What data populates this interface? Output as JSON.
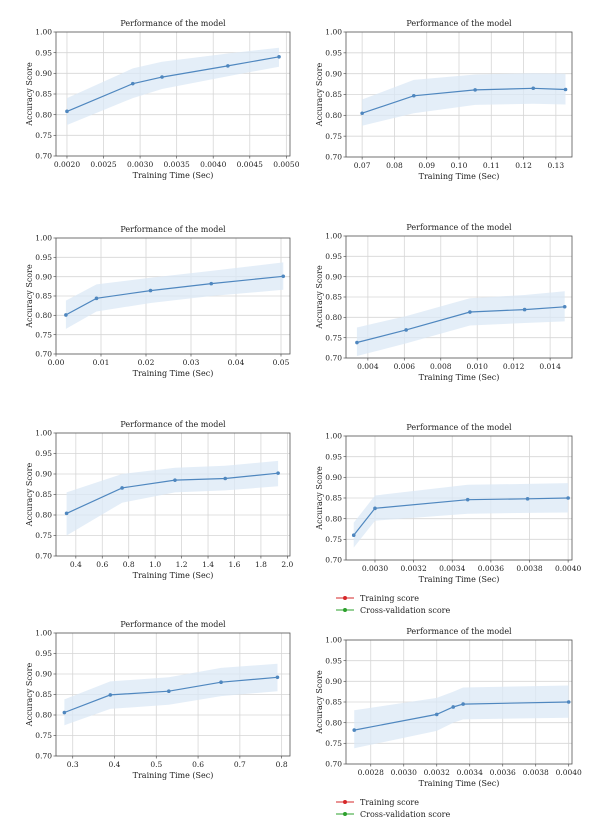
{
  "charts": [
    {
      "type": "line",
      "title": "Performance of the model",
      "xlabel": "Training Time (Sec)",
      "ylabel": "Accuracy Score",
      "xlim": [
        0.00185,
        0.00505
      ],
      "ylim": [
        0.7,
        1.0
      ],
      "xticks": [
        0.002,
        0.0025,
        0.003,
        0.0035,
        0.004,
        0.0045,
        0.005
      ],
      "xticklabels": [
        "0.0020",
        "0.0025",
        "0.0030",
        "0.0035",
        "0.0040",
        "0.0045",
        "0.0050"
      ],
      "yticks": [
        0.7,
        0.75,
        0.8,
        0.85,
        0.9,
        0.95,
        1.0
      ],
      "yticklabels": [
        "0.70",
        "0.75",
        "0.80",
        "0.85",
        "0.90",
        "0.95",
        "1.00"
      ],
      "grid": true,
      "x": [
        0.002,
        0.0029,
        0.0033,
        0.0042,
        0.0049
      ],
      "y": [
        0.808,
        0.875,
        0.891,
        0.918,
        0.94
      ],
      "y_lower": [
        0.775,
        0.84,
        0.862,
        0.893,
        0.916
      ],
      "y_upper": [
        0.84,
        0.912,
        0.928,
        0.948,
        0.962
      ]
    },
    {
      "type": "line",
      "title": "Performance of the model",
      "xlabel": "Training Time (Sec)",
      "ylabel": "Accuracy Score",
      "xlim": [
        0.065,
        0.135
      ],
      "ylim": [
        0.7,
        1.0
      ],
      "xticks": [
        0.07,
        0.08,
        0.09,
        0.1,
        0.11,
        0.12,
        0.13
      ],
      "xticklabels": [
        "0.07",
        "0.08",
        "0.09",
        "0.10",
        "0.11",
        "0.12",
        "0.13"
      ],
      "yticks": [
        0.7,
        0.75,
        0.8,
        0.85,
        0.9,
        0.95,
        1.0
      ],
      "yticklabels": [
        "0.70",
        "0.75",
        "0.80",
        "0.85",
        "0.90",
        "0.95",
        "1.00"
      ],
      "grid": true,
      "x": [
        0.07,
        0.086,
        0.105,
        0.123,
        0.133
      ],
      "y": [
        0.805,
        0.847,
        0.861,
        0.865,
        0.862
      ],
      "y_lower": [
        0.775,
        0.805,
        0.825,
        0.828,
        0.826
      ],
      "y_upper": [
        0.838,
        0.885,
        0.898,
        0.901,
        0.9
      ]
    },
    {
      "type": "line",
      "title": "Performance of the model",
      "xlabel": "Training Time (Sec)",
      "ylabel": "Accuracy Score",
      "xlim": [
        0.0,
        0.052
      ],
      "ylim": [
        0.7,
        1.0
      ],
      "xticks": [
        0.0,
        0.01,
        0.02,
        0.03,
        0.04,
        0.05
      ],
      "xticklabels": [
        "0.00",
        "0.01",
        "0.02",
        "0.03",
        "0.04",
        "0.05"
      ],
      "yticks": [
        0.7,
        0.75,
        0.8,
        0.85,
        0.9,
        0.95,
        1.0
      ],
      "yticklabels": [
        "0.70",
        "0.75",
        "0.80",
        "0.85",
        "0.90",
        "0.95",
        "1.00"
      ],
      "grid": true,
      "x": [
        0.0022,
        0.009,
        0.021,
        0.0345,
        0.0505
      ],
      "y": [
        0.801,
        0.844,
        0.864,
        0.882,
        0.901
      ],
      "y_lower": [
        0.765,
        0.81,
        0.832,
        0.85,
        0.866
      ],
      "y_upper": [
        0.838,
        0.88,
        0.897,
        0.915,
        0.937
      ]
    },
    {
      "type": "line",
      "title": "Performance of the model",
      "xlabel": "Training Time (Sec)",
      "ylabel": "Accuracy Score",
      "xlim": [
        0.0028,
        0.0152
      ],
      "ylim": [
        0.7,
        1.0
      ],
      "xticks": [
        0.004,
        0.006,
        0.008,
        0.01,
        0.012,
        0.014
      ],
      "xticklabels": [
        "0.004",
        "0.006",
        "0.008",
        "0.010",
        "0.012",
        "0.014"
      ],
      "yticks": [
        0.7,
        0.75,
        0.8,
        0.85,
        0.9,
        0.95,
        1.0
      ],
      "yticklabels": [
        "0.70",
        "0.75",
        "0.80",
        "0.85",
        "0.90",
        "0.95",
        "1.00"
      ],
      "grid": true,
      "x": [
        0.0034,
        0.0061,
        0.0096,
        0.0126,
        0.0148
      ],
      "y": [
        0.738,
        0.769,
        0.813,
        0.819,
        0.826
      ],
      "y_lower": [
        0.705,
        0.736,
        0.78,
        0.786,
        0.79
      ],
      "y_upper": [
        0.775,
        0.803,
        0.847,
        0.855,
        0.864
      ]
    },
    {
      "type": "line",
      "title": "Performance of the model",
      "xlabel": "Training Time (Sec)",
      "ylabel": "Accuracy Score",
      "xlim": [
        0.25,
        2.02
      ],
      "ylim": [
        0.7,
        1.0
      ],
      "xticks": [
        0.4,
        0.6,
        0.8,
        1.0,
        1.2,
        1.4,
        1.6,
        1.8,
        2.0
      ],
      "xticklabels": [
        "0.4",
        "0.6",
        "0.8",
        "1.0",
        "1.2",
        "1.4",
        "1.6",
        "1.8",
        "2.0"
      ],
      "yticks": [
        0.7,
        0.75,
        0.8,
        0.85,
        0.9,
        0.95,
        1.0
      ],
      "yticklabels": [
        "0.70",
        "0.75",
        "0.80",
        "0.85",
        "0.90",
        "0.95",
        "1.00"
      ],
      "grid": true,
      "x": [
        0.33,
        0.75,
        1.15,
        1.53,
        1.93
      ],
      "y": [
        0.804,
        0.866,
        0.885,
        0.889,
        0.902
      ],
      "y_lower": [
        0.75,
        0.83,
        0.855,
        0.86,
        0.87
      ],
      "y_upper": [
        0.855,
        0.9,
        0.915,
        0.92,
        0.932
      ]
    },
    {
      "type": "line",
      "title": "Performance of the model",
      "xlabel": "Training Time (Sec)",
      "ylabel": "Accuracy Score",
      "xlim": [
        0.00285,
        0.00402
      ],
      "ylim": [
        0.7,
        1.0
      ],
      "xticks": [
        0.003,
        0.0032,
        0.0034,
        0.0036,
        0.0038,
        0.004
      ],
      "xticklabels": [
        "0.0030",
        "0.0032",
        "0.0034",
        "0.0036",
        "0.0038",
        "0.0040"
      ],
      "yticks": [
        0.7,
        0.75,
        0.8,
        0.85,
        0.9,
        0.95,
        1.0
      ],
      "yticklabels": [
        "0.70",
        "0.75",
        "0.80",
        "0.85",
        "0.90",
        "0.95",
        "1.00"
      ],
      "grid": true,
      "x": [
        0.00289,
        0.003,
        0.00348,
        0.00379,
        0.004
      ],
      "y": [
        0.76,
        0.825,
        0.846,
        0.848,
        0.85
      ],
      "y_lower": [
        0.73,
        0.795,
        0.812,
        0.814,
        0.815
      ],
      "y_upper": [
        0.79,
        0.856,
        0.882,
        0.884,
        0.886
      ]
    },
    {
      "type": "line",
      "title": "Performance of the model",
      "xlabel": "Training Time (Sec)",
      "ylabel": "Accuracy Score",
      "xlim": [
        0.26,
        0.82
      ],
      "ylim": [
        0.7,
        1.0
      ],
      "xticks": [
        0.3,
        0.4,
        0.5,
        0.6,
        0.7,
        0.8
      ],
      "xticklabels": [
        "0.3",
        "0.4",
        "0.5",
        "0.6",
        "0.7",
        "0.8"
      ],
      "yticks": [
        0.7,
        0.75,
        0.8,
        0.85,
        0.9,
        0.95,
        1.0
      ],
      "yticklabels": [
        "0.70",
        "0.75",
        "0.80",
        "0.85",
        "0.90",
        "0.95",
        "1.00"
      ],
      "grid": true,
      "x": [
        0.28,
        0.39,
        0.53,
        0.655,
        0.79
      ],
      "y": [
        0.806,
        0.849,
        0.858,
        0.88,
        0.892
      ],
      "y_lower": [
        0.775,
        0.815,
        0.825,
        0.846,
        0.858
      ],
      "y_upper": [
        0.838,
        0.882,
        0.892,
        0.915,
        0.925
      ]
    },
    {
      "type": "line",
      "title": "Performance of the model",
      "xlabel": "Training Time (Sec)",
      "ylabel": "Accuracy Score",
      "xlim": [
        0.00265,
        0.00402
      ],
      "ylim": [
        0.7,
        1.0
      ],
      "xticks": [
        0.0028,
        0.003,
        0.0032,
        0.0034,
        0.0036,
        0.0038,
        0.004
      ],
      "xticklabels": [
        "0.0028",
        "0.0030",
        "0.0032",
        "0.0034",
        "0.0036",
        "0.0038",
        "0.0040"
      ],
      "yticks": [
        0.7,
        0.75,
        0.8,
        0.85,
        0.9,
        0.95,
        1.0
      ],
      "yticklabels": [
        "0.70",
        "0.75",
        "0.80",
        "0.85",
        "0.90",
        "0.95",
        "1.00"
      ],
      "grid": true,
      "x": [
        0.0027,
        0.0032,
        0.0033,
        0.00336,
        0.004
      ],
      "y": [
        0.782,
        0.82,
        0.838,
        0.845,
        0.85
      ],
      "y_lower": [
        0.738,
        0.78,
        0.8,
        0.808,
        0.812
      ],
      "y_upper": [
        0.83,
        0.86,
        0.875,
        0.885,
        0.89
      ]
    }
  ],
  "legends": [
    {
      "items": [
        {
          "label": "Training score",
          "color": "#d62728"
        },
        {
          "label": "Cross-validation score",
          "color": "#2ca02c"
        }
      ]
    },
    {
      "items": [
        {
          "label": "Training score",
          "color": "#d62728"
        },
        {
          "label": "Cross-validation score",
          "color": "#2ca02c"
        }
      ]
    }
  ],
  "colors": {
    "line": "#4f87bf",
    "band": "#dbe8f5"
  }
}
